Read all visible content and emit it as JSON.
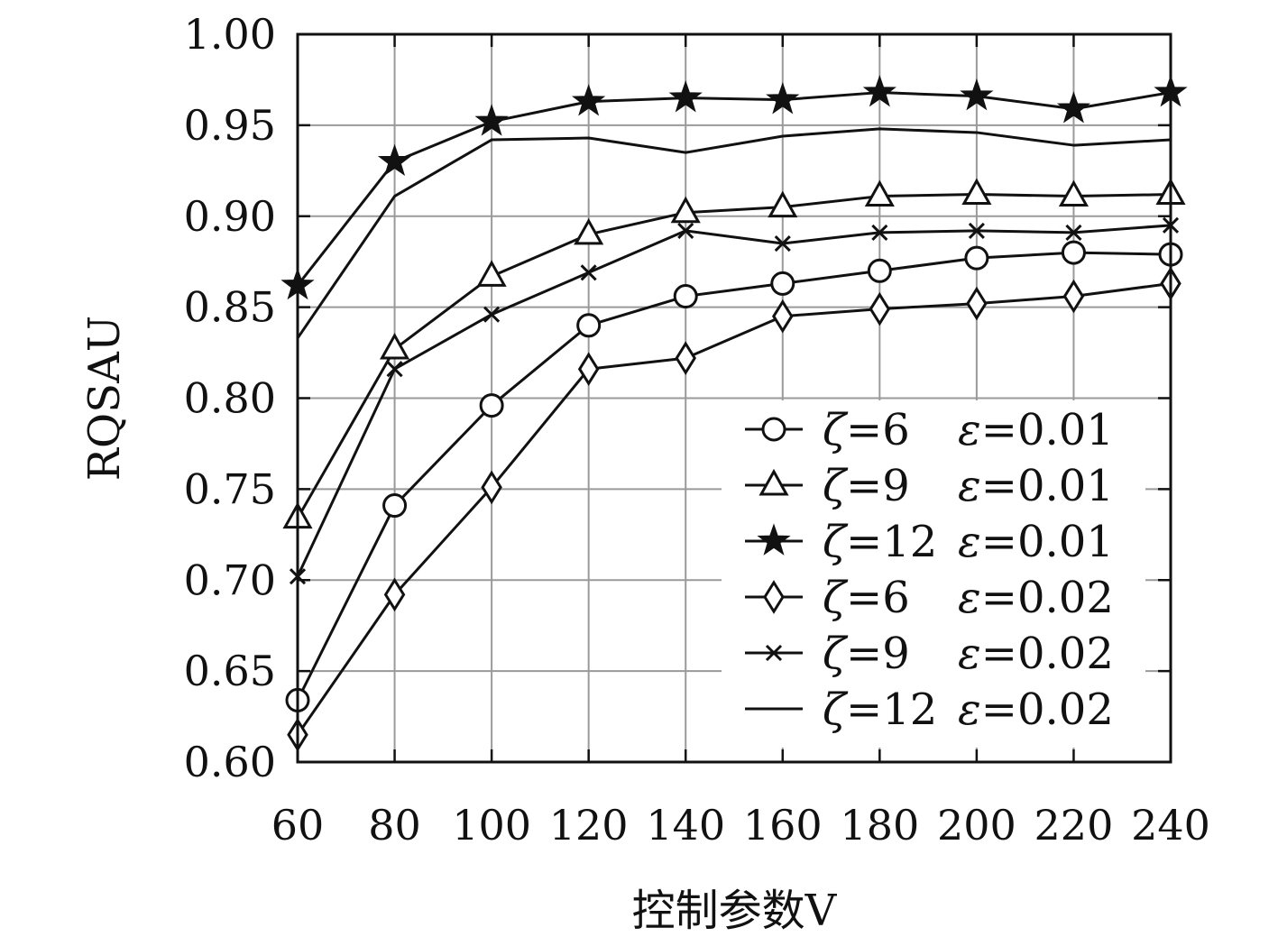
{
  "chart_data": {
    "type": "line",
    "title": "",
    "xlabel": "控制参数V",
    "ylabel": "RQSAU",
    "x": [
      60,
      80,
      100,
      120,
      140,
      160,
      180,
      200,
      220,
      240
    ],
    "xlim": [
      60,
      240
    ],
    "ylim": [
      0.6,
      1.0
    ],
    "xticks": [
      "60",
      "80",
      "100",
      "120",
      "140",
      "160",
      "180",
      "200",
      "220",
      "240"
    ],
    "yticks": [
      "0.60",
      "0.65",
      "0.70",
      "0.75",
      "0.80",
      "0.85",
      "0.90",
      "0.95",
      "1.00"
    ],
    "grid": true,
    "legend_position": "bottom-right",
    "series": [
      {
        "name": "ζ=6 ε=0.01",
        "zeta": "6",
        "eps": "0.01",
        "marker": "circle",
        "values": [
          0.634,
          0.741,
          0.796,
          0.84,
          0.856,
          0.863,
          0.87,
          0.877,
          0.88,
          0.879
        ]
      },
      {
        "name": "ζ=9 ε=0.01",
        "zeta": "9",
        "eps": "0.01",
        "marker": "triangle",
        "values": [
          0.734,
          0.827,
          0.867,
          0.89,
          0.902,
          0.905,
          0.911,
          0.912,
          0.911,
          0.912
        ]
      },
      {
        "name": "ζ=12 ε=0.01",
        "zeta": "12",
        "eps": "0.01",
        "marker": "star",
        "values": [
          0.862,
          0.93,
          0.952,
          0.963,
          0.965,
          0.964,
          0.968,
          0.966,
          0.959,
          0.968
        ]
      },
      {
        "name": "ζ=6 ε=0.02",
        "zeta": "6",
        "eps": "0.02",
        "marker": "diamond",
        "values": [
          0.615,
          0.692,
          0.751,
          0.816,
          0.822,
          0.845,
          0.849,
          0.852,
          0.856,
          0.863
        ]
      },
      {
        "name": "ζ=9 ε=0.02",
        "zeta": "9",
        "eps": "0.02",
        "marker": "x",
        "values": [
          0.702,
          0.816,
          0.846,
          0.869,
          0.892,
          0.885,
          0.891,
          0.892,
          0.891,
          0.895
        ]
      },
      {
        "name": "ζ=12 ε=0.02",
        "zeta": "12",
        "eps": "0.02",
        "marker": "none",
        "values": [
          0.833,
          0.911,
          0.942,
          0.943,
          0.935,
          0.944,
          0.948,
          0.946,
          0.939,
          0.942
        ]
      }
    ]
  }
}
